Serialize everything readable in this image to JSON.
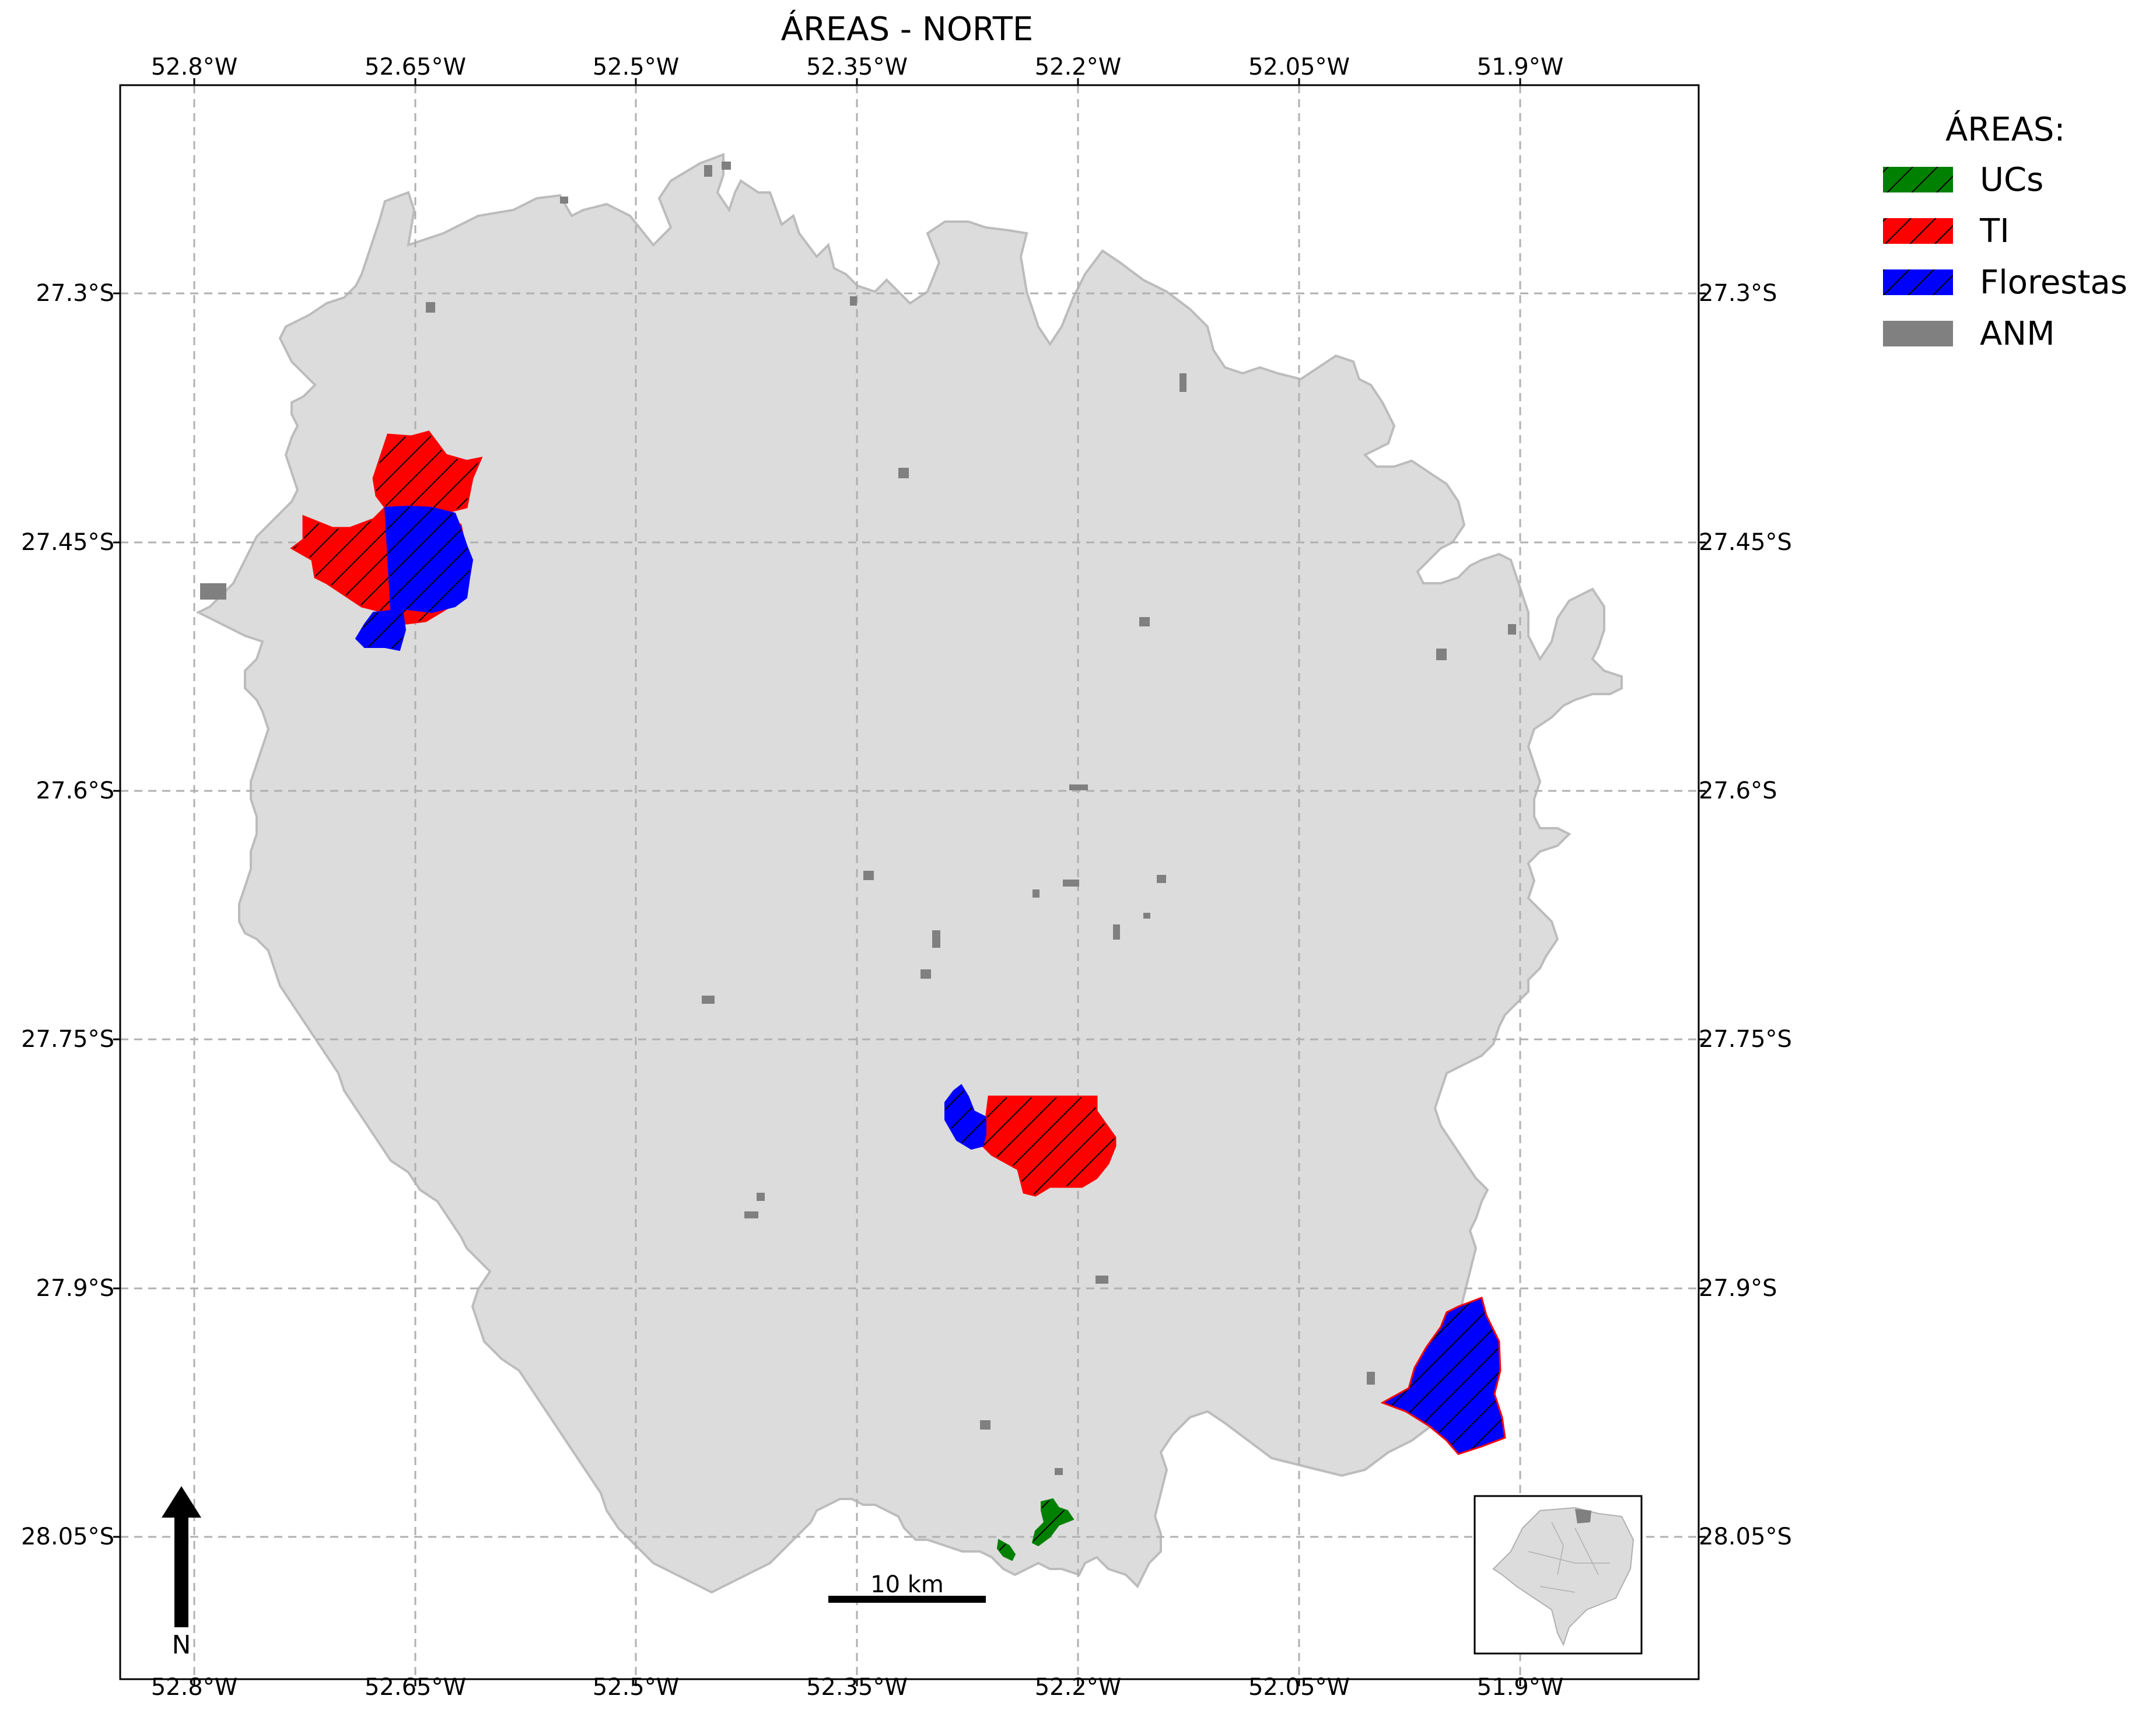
{
  "title": "ÁREAS - NORTE",
  "lon_ticks": [
    "52.8°W",
    "52.65°W",
    "52.5°W",
    "52.35°W",
    "52.2°W",
    "52.05°W",
    "51.9°W"
  ],
  "lat_ticks": [
    "27.3°S",
    "27.45°S",
    "27.6°S",
    "27.75°S",
    "27.9°S",
    "28.05°S"
  ],
  "legend": {
    "title": "ÁREAS:",
    "items": [
      {
        "label": "UCs",
        "color": "#008000"
      },
      {
        "label": "TI",
        "color": "#ff0000"
      },
      {
        "label": "Florestas",
        "color": "#0000ff"
      },
      {
        "label": "ANM",
        "color": "#808080"
      }
    ]
  },
  "scale_bar": {
    "label": "10 km"
  },
  "north_arrow": {
    "label": "N"
  },
  "colors": {
    "region_fill": "#dcdcdc",
    "region_edge": "#bcbcbc",
    "grid": "#b0b0b0",
    "hatch": "#000000"
  }
}
